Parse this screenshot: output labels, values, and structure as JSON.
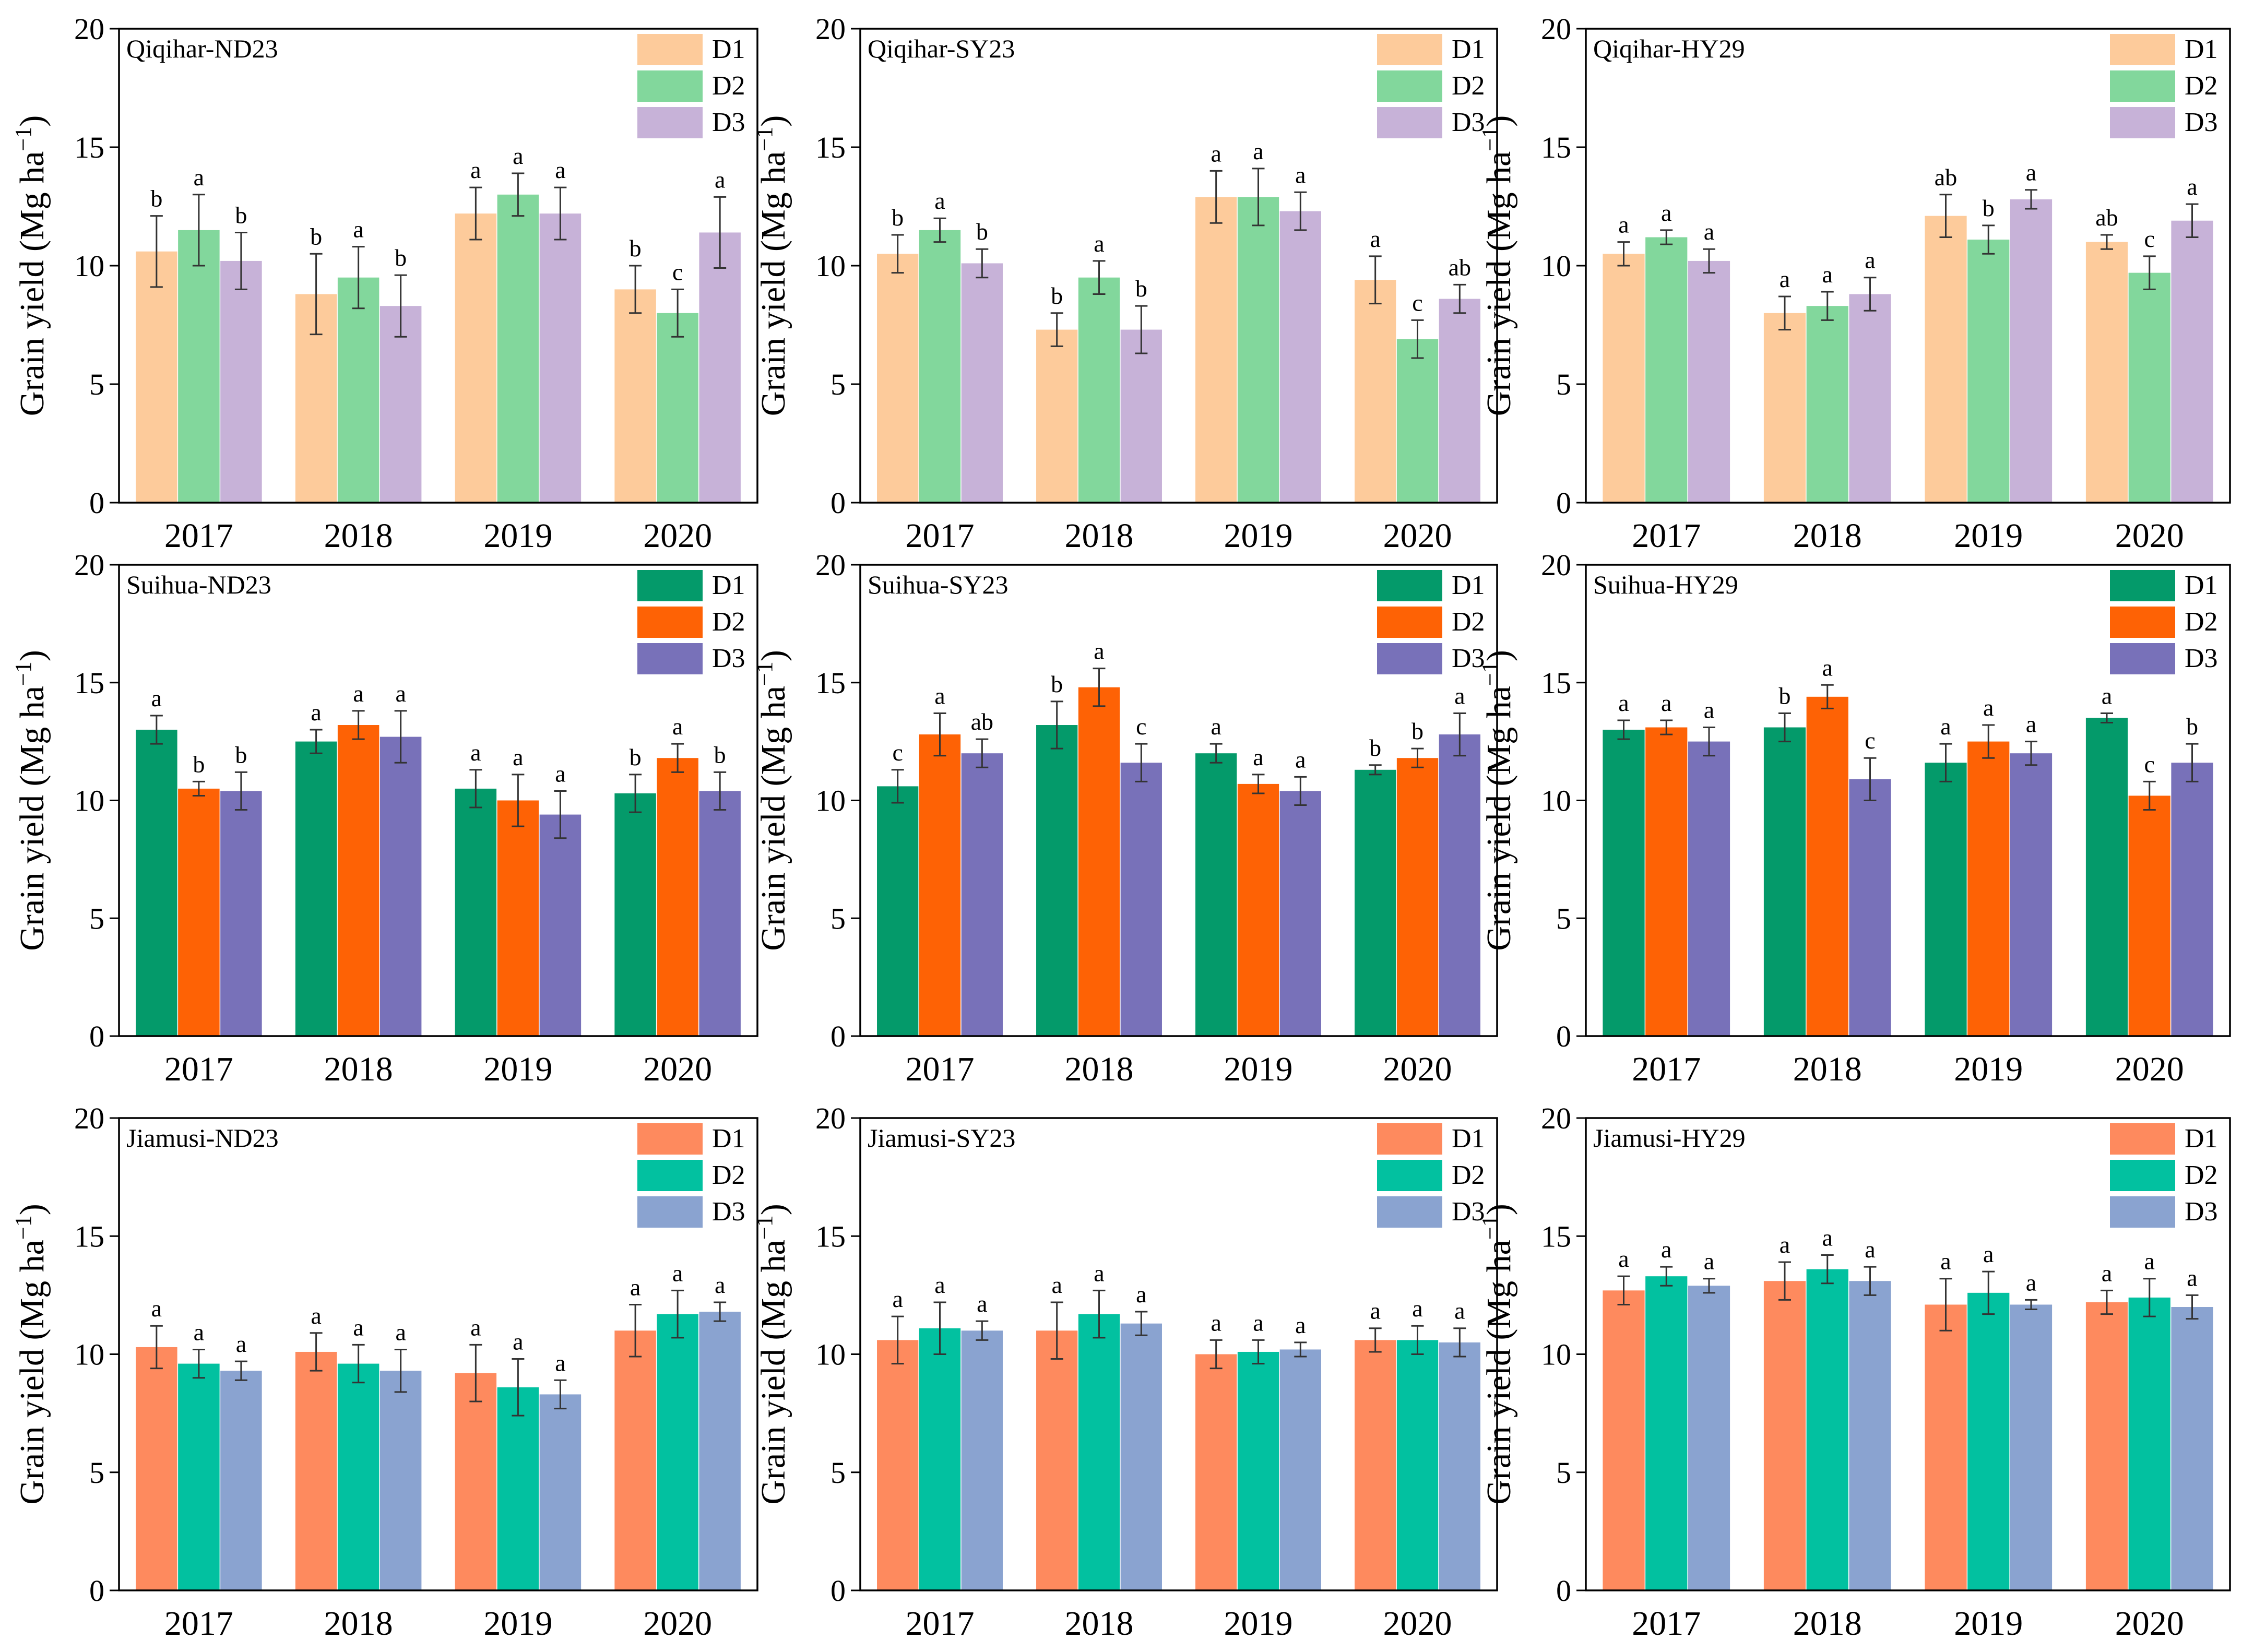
{
  "chart_data": [
    {
      "type": "bar",
      "title": "Qiqihar-ND23",
      "ylabel": "Grain yield (Mg ha",
      "ylabel_sup": "−1",
      "ylabel_close": ")",
      "xlabel": "",
      "ylim": [
        0,
        20
      ],
      "yticks": [
        0,
        5,
        10,
        15,
        20
      ],
      "categories": [
        "2017",
        "2018",
        "2019",
        "2020"
      ],
      "legend": "top-right",
      "series": [
        {
          "name": "D1",
          "color": "#FDCB9B",
          "values": [
            10.6,
            8.8,
            12.2,
            9.0
          ],
          "errors": [
            1.5,
            1.7,
            1.1,
            1.0
          ],
          "letters": [
            "b",
            "b",
            "a",
            "b"
          ]
        },
        {
          "name": "D2",
          "color": "#82D79C",
          "values": [
            11.5,
            9.5,
            13.0,
            8.0
          ],
          "errors": [
            1.5,
            1.3,
            0.9,
            1.0
          ],
          "letters": [
            "a",
            "a",
            "a",
            "c"
          ]
        },
        {
          "name": "D3",
          "color": "#C7B2D8",
          "values": [
            10.2,
            8.3,
            12.2,
            11.4
          ],
          "errors": [
            1.2,
            1.3,
            1.1,
            1.5
          ],
          "letters": [
            "b",
            "b",
            "a",
            "a"
          ]
        }
      ]
    },
    {
      "type": "bar",
      "title": "Qiqihar-SY23",
      "ylabel": "Grain yield (Mg ha",
      "ylabel_sup": "−1",
      "ylabel_close": ")",
      "xlabel": "",
      "ylim": [
        0,
        20
      ],
      "yticks": [
        0,
        5,
        10,
        15,
        20
      ],
      "categories": [
        "2017",
        "2018",
        "2019",
        "2020"
      ],
      "legend": "top-right",
      "series": [
        {
          "name": "D1",
          "color": "#FDCB9B",
          "values": [
            10.5,
            7.3,
            12.9,
            9.4
          ],
          "errors": [
            0.8,
            0.7,
            1.1,
            1.0
          ],
          "letters": [
            "b",
            "b",
            "a",
            "a"
          ]
        },
        {
          "name": "D2",
          "color": "#82D79C",
          "values": [
            11.5,
            9.5,
            12.9,
            6.9
          ],
          "errors": [
            0.5,
            0.7,
            1.2,
            0.8
          ],
          "letters": [
            "a",
            "a",
            "a",
            "c"
          ]
        },
        {
          "name": "D3",
          "color": "#C7B2D8",
          "values": [
            10.1,
            7.3,
            12.3,
            8.6
          ],
          "errors": [
            0.6,
            1.0,
            0.8,
            0.6
          ],
          "letters": [
            "b",
            "b",
            "a",
            "ab"
          ]
        }
      ]
    },
    {
      "type": "bar",
      "title": "Qiqihar-HY29",
      "ylabel": "Grain yield (Mg ha",
      "ylabel_sup": "−1",
      "ylabel_close": ")",
      "xlabel": "",
      "ylim": [
        0,
        20
      ],
      "yticks": [
        0,
        5,
        10,
        15,
        20
      ],
      "categories": [
        "2017",
        "2018",
        "2019",
        "2020"
      ],
      "legend": "top-right",
      "series": [
        {
          "name": "D1",
          "color": "#FDCB9B",
          "values": [
            10.5,
            8.0,
            12.1,
            11.0
          ],
          "errors": [
            0.5,
            0.7,
            0.9,
            0.3
          ],
          "letters": [
            "a",
            "a",
            "ab",
            "ab"
          ]
        },
        {
          "name": "D2",
          "color": "#82D79C",
          "values": [
            11.2,
            8.3,
            11.1,
            9.7
          ],
          "errors": [
            0.3,
            0.6,
            0.6,
            0.7
          ],
          "letters": [
            "a",
            "a",
            "b",
            "c"
          ]
        },
        {
          "name": "D3",
          "color": "#C7B2D8",
          "values": [
            10.2,
            8.8,
            12.8,
            11.9
          ],
          "errors": [
            0.5,
            0.7,
            0.4,
            0.7
          ],
          "letters": [
            "a",
            "a",
            "a",
            "a"
          ]
        }
      ]
    },
    {
      "type": "bar",
      "title": "Suihua-ND23",
      "ylabel": "Grain yield (Mg ha",
      "ylabel_sup": "−1",
      "ylabel_close": ")",
      "xlabel": "",
      "ylim": [
        0,
        20
      ],
      "yticks": [
        0,
        5,
        10,
        15,
        20
      ],
      "categories": [
        "2017",
        "2018",
        "2019",
        "2020"
      ],
      "legend": "top-right",
      "series": [
        {
          "name": "D1",
          "color": "#049A6A",
          "values": [
            13.0,
            12.5,
            10.5,
            10.3
          ],
          "errors": [
            0.6,
            0.5,
            0.8,
            0.8
          ],
          "letters": [
            "a",
            "a",
            "a",
            "b"
          ]
        },
        {
          "name": "D2",
          "color": "#FE6205",
          "values": [
            10.5,
            13.2,
            10.0,
            11.8
          ],
          "errors": [
            0.3,
            0.6,
            1.1,
            0.6
          ],
          "letters": [
            "b",
            "a",
            "a",
            "a"
          ]
        },
        {
          "name": "D3",
          "color": "#7871B9",
          "values": [
            10.4,
            12.7,
            9.4,
            10.4
          ],
          "errors": [
            0.8,
            1.1,
            1.0,
            0.8
          ],
          "letters": [
            "b",
            "a",
            "a",
            "b"
          ]
        }
      ]
    },
    {
      "type": "bar",
      "title": "Suihua-SY23",
      "ylabel": "Grain yield (Mg ha",
      "ylabel_sup": "−1",
      "ylabel_close": ")",
      "xlabel": "",
      "ylim": [
        0,
        20
      ],
      "yticks": [
        0,
        5,
        10,
        15,
        20
      ],
      "categories": [
        "2017",
        "2018",
        "2019",
        "2020"
      ],
      "legend": "top-right",
      "series": [
        {
          "name": "D1",
          "color": "#049A6A",
          "values": [
            10.6,
            13.2,
            12.0,
            11.3
          ],
          "errors": [
            0.7,
            1.0,
            0.4,
            0.2
          ],
          "letters": [
            "c",
            "b",
            "a",
            "b"
          ]
        },
        {
          "name": "D2",
          "color": "#FE6205",
          "values": [
            12.8,
            14.8,
            10.7,
            11.8
          ],
          "errors": [
            0.9,
            0.8,
            0.4,
            0.4
          ],
          "letters": [
            "a",
            "a",
            "a",
            "b"
          ]
        },
        {
          "name": "D3",
          "color": "#7871B9",
          "values": [
            12.0,
            11.6,
            10.4,
            12.8
          ],
          "errors": [
            0.6,
            0.8,
            0.6,
            0.9
          ],
          "letters": [
            "ab",
            "c",
            "a",
            "a"
          ]
        }
      ]
    },
    {
      "type": "bar",
      "title": "Suihua-HY29",
      "ylabel": "Grain yield (Mg ha",
      "ylabel_sup": "−1",
      "ylabel_close": ")",
      "xlabel": "",
      "ylim": [
        0,
        20
      ],
      "yticks": [
        0,
        5,
        10,
        15,
        20
      ],
      "categories": [
        "2017",
        "2018",
        "2019",
        "2020"
      ],
      "legend": "top-right",
      "series": [
        {
          "name": "D1",
          "color": "#049A6A",
          "values": [
            13.0,
            13.1,
            11.6,
            13.5
          ],
          "errors": [
            0.4,
            0.6,
            0.8,
            0.2
          ],
          "letters": [
            "a",
            "b",
            "a",
            "a"
          ]
        },
        {
          "name": "D2",
          "color": "#FE6205",
          "values": [
            13.1,
            14.4,
            12.5,
            10.2
          ],
          "errors": [
            0.3,
            0.5,
            0.7,
            0.6
          ],
          "letters": [
            "a",
            "a",
            "a",
            "c"
          ]
        },
        {
          "name": "D3",
          "color": "#7871B9",
          "values": [
            12.5,
            10.9,
            12.0,
            11.6
          ],
          "errors": [
            0.6,
            0.9,
            0.5,
            0.8
          ],
          "letters": [
            "a",
            "c",
            "a",
            "b"
          ]
        }
      ]
    },
    {
      "type": "bar",
      "title": "Jiamusi-ND23",
      "ylabel": "Grain yield (Mg ha",
      "ylabel_sup": "−1",
      "ylabel_close": ")",
      "xlabel": "",
      "ylim": [
        0,
        20
      ],
      "yticks": [
        0,
        5,
        10,
        15,
        20
      ],
      "categories": [
        "2017",
        "2018",
        "2019",
        "2020"
      ],
      "legend": "top-right",
      "series": [
        {
          "name": "D1",
          "color": "#FE8A5E",
          "values": [
            10.3,
            10.1,
            9.2,
            11.0
          ],
          "errors": [
            0.9,
            0.8,
            1.2,
            1.1
          ],
          "letters": [
            "a",
            "a",
            "a",
            "a"
          ]
        },
        {
          "name": "D2",
          "color": "#02C1A0",
          "values": [
            9.6,
            9.6,
            8.6,
            11.7
          ],
          "errors": [
            0.6,
            0.8,
            1.2,
            1.0
          ],
          "letters": [
            "a",
            "a",
            "a",
            "a"
          ]
        },
        {
          "name": "D3",
          "color": "#8AA3D0",
          "values": [
            9.3,
            9.3,
            8.3,
            11.8
          ],
          "errors": [
            0.4,
            0.9,
            0.6,
            0.4
          ],
          "letters": [
            "a",
            "a",
            "a",
            "a"
          ]
        }
      ]
    },
    {
      "type": "bar",
      "title": "Jiamusi-SY23",
      "ylabel": "Grain yield (Mg ha",
      "ylabel_sup": "−1",
      "ylabel_close": ")",
      "xlabel": "",
      "ylim": [
        0,
        20
      ],
      "yticks": [
        0,
        5,
        10,
        15,
        20
      ],
      "categories": [
        "2017",
        "2018",
        "2019",
        "2020"
      ],
      "legend": "top-right",
      "series": [
        {
          "name": "D1",
          "color": "#FE8A5E",
          "values": [
            10.6,
            11.0,
            10.0,
            10.6
          ],
          "errors": [
            1.0,
            1.2,
            0.6,
            0.5
          ],
          "letters": [
            "a",
            "a",
            "a",
            "a"
          ]
        },
        {
          "name": "D2",
          "color": "#02C1A0",
          "values": [
            11.1,
            11.7,
            10.1,
            10.6
          ],
          "errors": [
            1.1,
            1.0,
            0.5,
            0.6
          ],
          "letters": [
            "a",
            "a",
            "a",
            "a"
          ]
        },
        {
          "name": "D3",
          "color": "#8AA3D0",
          "values": [
            11.0,
            11.3,
            10.2,
            10.5
          ],
          "errors": [
            0.4,
            0.5,
            0.3,
            0.6
          ],
          "letters": [
            "a",
            "a",
            "a",
            "a"
          ]
        }
      ]
    },
    {
      "type": "bar",
      "title": "Jiamusi-HY29",
      "ylabel": "Grain yield (Mg ha",
      "ylabel_sup": "−1",
      "ylabel_close": ")",
      "xlabel": "",
      "ylim": [
        0,
        20
      ],
      "yticks": [
        0,
        5,
        10,
        15,
        20
      ],
      "categories": [
        "2017",
        "2018",
        "2019",
        "2020"
      ],
      "legend": "top-right",
      "series": [
        {
          "name": "D1",
          "color": "#FE8A5E",
          "values": [
            12.7,
            13.1,
            12.1,
            12.2
          ],
          "errors": [
            0.6,
            0.8,
            1.1,
            0.5
          ],
          "letters": [
            "a",
            "a",
            "a",
            "a"
          ]
        },
        {
          "name": "D2",
          "color": "#02C1A0",
          "values": [
            13.3,
            13.6,
            12.6,
            12.4
          ],
          "errors": [
            0.4,
            0.6,
            0.9,
            0.8
          ],
          "letters": [
            "a",
            "a",
            "a",
            "a"
          ]
        },
        {
          "name": "D3",
          "color": "#8AA3D0",
          "values": [
            12.9,
            13.1,
            12.1,
            12.0
          ],
          "errors": [
            0.3,
            0.6,
            0.2,
            0.5
          ],
          "letters": [
            "a",
            "a",
            "a",
            "a"
          ]
        }
      ]
    }
  ]
}
